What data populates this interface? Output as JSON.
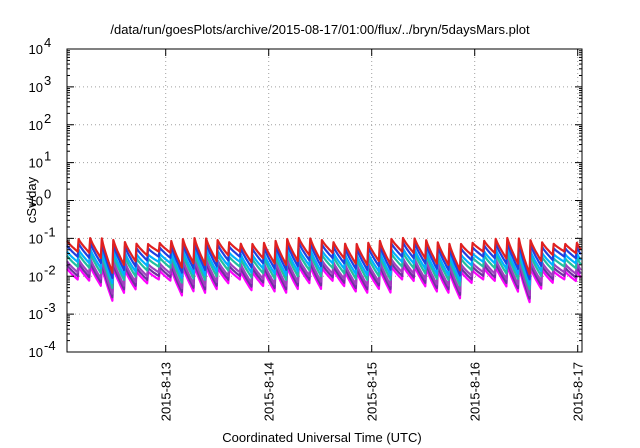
{
  "chart_data": {
    "type": "line",
    "title": "/data/run/goesPlots/archive/2015-08-17/01:00/flux/../bryn/5daysMars.plot",
    "xlabel": "Coordinated Universal Time (UTC)",
    "ylabel": "cSv/day",
    "y_scale": "log",
    "ylim_exponents": [
      -4,
      4
    ],
    "y_tick_base": "10",
    "y_tick_exponents": [
      "-4",
      "-3",
      "-2",
      "-1",
      "0",
      "1",
      "2",
      "3",
      "4"
    ],
    "x_range": [
      "2015-08-12 01:00",
      "2015-08-17 01:00"
    ],
    "x_ticks": [
      "2015-8-13",
      "2015-8-14",
      "2015-8-15",
      "2015-8-16",
      "2015-8-17"
    ],
    "grid": true,
    "oscillation_period_hours": 2.7,
    "series": [
      {
        "color": "#ff00ff",
        "peak_value": 0.016,
        "trough_value": 0.0055
      },
      {
        "color": "#7030a0",
        "peak_value": 0.02,
        "trough_value": 0.0068
      },
      {
        "color": "#a040c0",
        "peak_value": 0.025,
        "trough_value": 0.0085
      },
      {
        "color": "#20c0a0",
        "peak_value": 0.035,
        "trough_value": 0.012
      },
      {
        "color": "#00b0ff",
        "peak_value": 0.045,
        "trough_value": 0.016
      },
      {
        "color": "#2040e0",
        "peak_value": 0.065,
        "trough_value": 0.022
      },
      {
        "color": "#e02020",
        "peak_value": 0.085,
        "trough_value": 0.03
      }
    ]
  }
}
